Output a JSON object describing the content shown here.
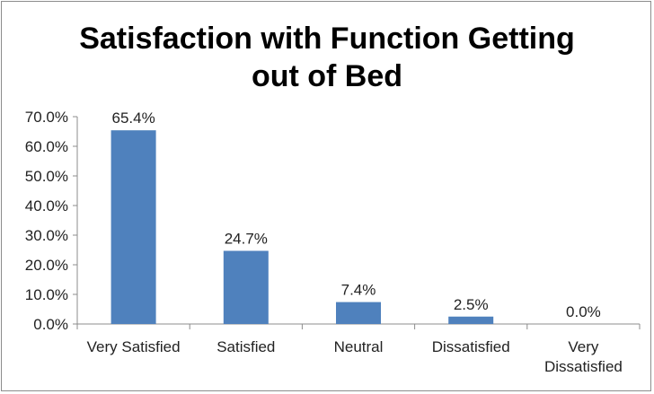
{
  "chart_data": {
    "type": "bar",
    "title_lines": [
      "Satisfaction with Function Getting",
      "out of Bed"
    ],
    "categories": [
      [
        "Very Satisfied"
      ],
      [
        "Satisfied"
      ],
      [
        "Neutral"
      ],
      [
        "Dissatisfied"
      ],
      [
        "Very",
        "Dissatisfied"
      ]
    ],
    "values": [
      65.4,
      24.7,
      7.4,
      2.5,
      0.0
    ],
    "value_labels": [
      "65.4%",
      "24.7%",
      "7.4%",
      "2.5%",
      "0.0%"
    ],
    "yticks": [
      "0.0%",
      "10.0%",
      "20.0%",
      "30.0%",
      "40.0%",
      "50.0%",
      "60.0%",
      "70.0%"
    ],
    "ylim": [
      0,
      70
    ],
    "bar_color": "#4F81BD",
    "grid": false,
    "legend": false
  }
}
